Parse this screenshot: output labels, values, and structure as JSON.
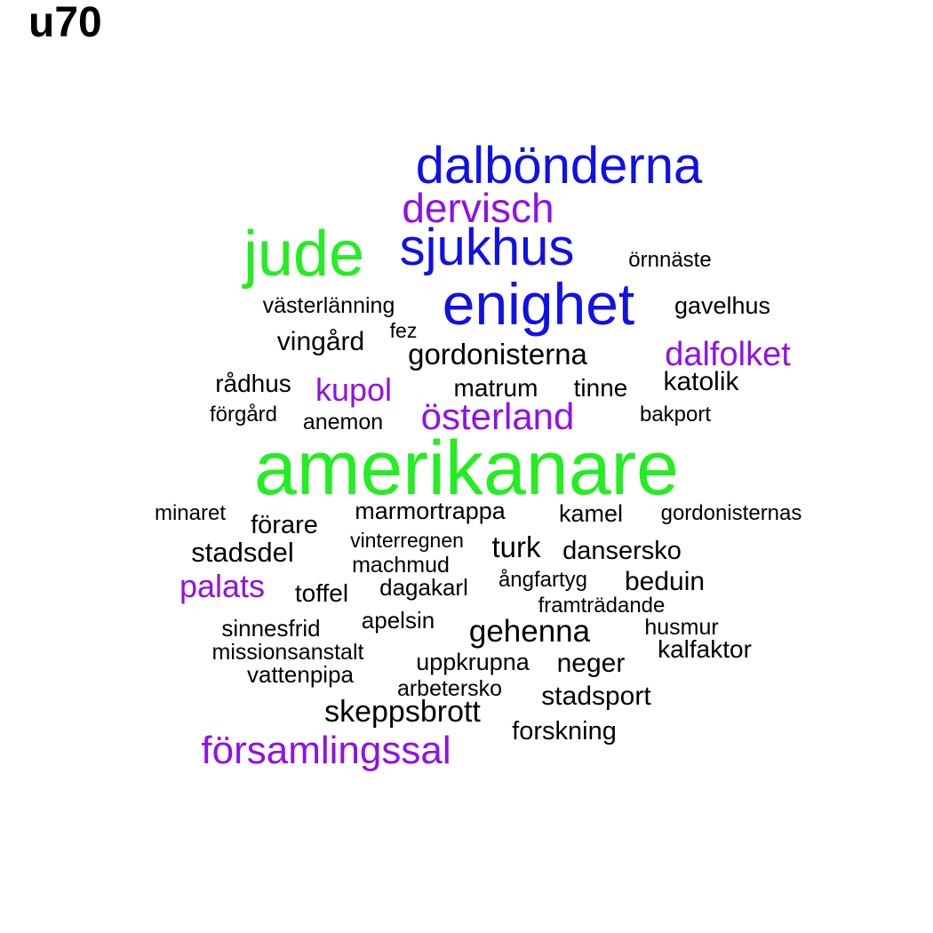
{
  "title": "u70",
  "colors": {
    "green": "#22ee22",
    "blue": "#1010e8",
    "purple": "#9010e8",
    "black": "#000000"
  },
  "words": [
    {
      "text": "dalbönderna",
      "color": "blue"
    },
    {
      "text": "dervisch",
      "color": "purple"
    },
    {
      "text": "jude",
      "color": "green"
    },
    {
      "text": "sjukhus",
      "color": "blue"
    },
    {
      "text": "örnnäste",
      "color": "black"
    },
    {
      "text": "västerlänning",
      "color": "black"
    },
    {
      "text": "enighet",
      "color": "blue"
    },
    {
      "text": "gavelhus",
      "color": "black"
    },
    {
      "text": "fez",
      "color": "black"
    },
    {
      "text": "vingård",
      "color": "black"
    },
    {
      "text": "gordonisterna",
      "color": "black"
    },
    {
      "text": "dalfolket",
      "color": "purple"
    },
    {
      "text": "rådhus",
      "color": "black"
    },
    {
      "text": "kupol",
      "color": "purple"
    },
    {
      "text": "matrum",
      "color": "black"
    },
    {
      "text": "tinne",
      "color": "black"
    },
    {
      "text": "katolik",
      "color": "black"
    },
    {
      "text": "förgård",
      "color": "black"
    },
    {
      "text": "anemon",
      "color": "black"
    },
    {
      "text": "österland",
      "color": "purple"
    },
    {
      "text": "bakport",
      "color": "black"
    },
    {
      "text": "amerikanare",
      "color": "green"
    },
    {
      "text": "minaret",
      "color": "black"
    },
    {
      "text": "förare",
      "color": "black"
    },
    {
      "text": "marmortrappa",
      "color": "black"
    },
    {
      "text": "kamel",
      "color": "black"
    },
    {
      "text": "gordonisternas",
      "color": "black"
    },
    {
      "text": "vinterregnen",
      "color": "black"
    },
    {
      "text": "stadsdel",
      "color": "black"
    },
    {
      "text": "turk",
      "color": "black"
    },
    {
      "text": "dansersko",
      "color": "black"
    },
    {
      "text": "machmud",
      "color": "black"
    },
    {
      "text": "palats",
      "color": "purple"
    },
    {
      "text": "toffel",
      "color": "black"
    },
    {
      "text": "dagakarl",
      "color": "black"
    },
    {
      "text": "ångfartyg",
      "color": "black"
    },
    {
      "text": "beduin",
      "color": "black"
    },
    {
      "text": "framträdande",
      "color": "black"
    },
    {
      "text": "apelsin",
      "color": "black"
    },
    {
      "text": "sinnesfrid",
      "color": "black"
    },
    {
      "text": "gehenna",
      "color": "black"
    },
    {
      "text": "husmur",
      "color": "black"
    },
    {
      "text": "missionsanstalt",
      "color": "black"
    },
    {
      "text": "kalfaktor",
      "color": "black"
    },
    {
      "text": "uppkrupna",
      "color": "black"
    },
    {
      "text": "neger",
      "color": "black"
    },
    {
      "text": "vattenpipa",
      "color": "black"
    },
    {
      "text": "arbetersko",
      "color": "black"
    },
    {
      "text": "stadsport",
      "color": "black"
    },
    {
      "text": "skeppsbrott",
      "color": "black"
    },
    {
      "text": "forskning",
      "color": "black"
    },
    {
      "text": "församlingssal",
      "color": "purple"
    }
  ]
}
